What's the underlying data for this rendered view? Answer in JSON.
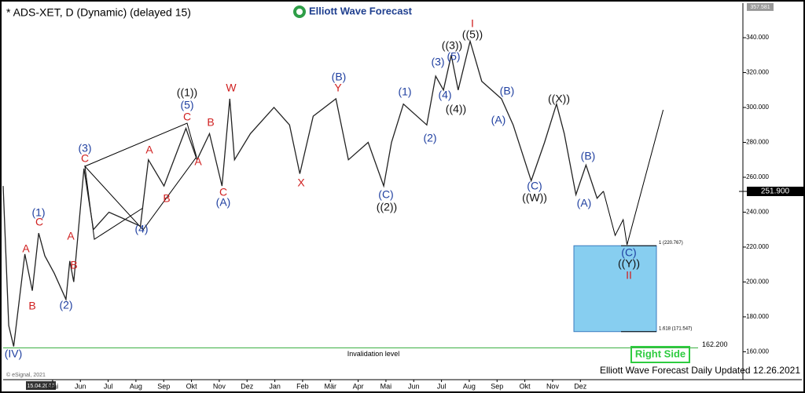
{
  "chart_data": {
    "type": "line",
    "title": "* ADS-XET, D (Dynamic) (delayed 15)",
    "logo": "Elliott Wave Forecast",
    "footer": "Elliott Wave Forecast Daily Updated 12.26.2021",
    "badge": "Right Side",
    "copyright": "© eSignal, 2021",
    "start_date": "15.04.2020",
    "xlim": [
      -1.78,
      24.85
    ],
    "ylim": [
      144,
      358
    ],
    "xticks": [
      {
        "value": 0,
        "label": "Mai"
      },
      {
        "value": 1,
        "label": "Jun"
      },
      {
        "value": 2,
        "label": "Jul"
      },
      {
        "value": 3,
        "label": "Aug"
      },
      {
        "value": 4,
        "label": "Sep"
      },
      {
        "value": 5,
        "label": "Okt"
      },
      {
        "value": 6,
        "label": "Nov"
      },
      {
        "value": 7,
        "label": "Dez"
      },
      {
        "value": 8,
        "label": "Jan"
      },
      {
        "value": 9,
        "label": "Feb"
      },
      {
        "value": 10,
        "label": "Mär"
      },
      {
        "value": 11,
        "label": "Apr"
      },
      {
        "value": 12,
        "label": "Mai"
      },
      {
        "value": 13,
        "label": "Jun"
      },
      {
        "value": 14,
        "label": "Jul"
      },
      {
        "value": 15,
        "label": "Aug"
      },
      {
        "value": 16,
        "label": "Sep"
      },
      {
        "value": 17,
        "label": "Okt"
      },
      {
        "value": 18,
        "label": "Nov"
      },
      {
        "value": 19,
        "label": "Dez"
      }
    ],
    "yticks": [
      {
        "value": 160,
        "label": "160.000"
      },
      {
        "value": 180,
        "label": "180.000"
      },
      {
        "value": 200,
        "label": "200.000"
      },
      {
        "value": 220,
        "label": "220.000"
      },
      {
        "value": 240,
        "label": "240.000"
      },
      {
        "value": 260,
        "label": "260.000"
      },
      {
        "value": 280,
        "label": "280.000"
      },
      {
        "value": 300,
        "label": "300.000"
      },
      {
        "value": 320,
        "label": "320.000"
      },
      {
        "value": 340,
        "label": "340.000"
      }
    ],
    "high": {
      "value": 357.581,
      "label": "357.581"
    },
    "last_price": {
      "value": 251.9,
      "label": "251.900"
    },
    "series": [
      {
        "color": "#222222",
        "x": [
          -1.78,
          -1.58,
          -1.4,
          -1.0,
          -0.73,
          -0.5,
          -0.28,
          0.06,
          0.48,
          0.62,
          0.76,
          1.13,
          1.47,
          2.03,
          2.74,
          3.16,
          3.45,
          4.01,
          4.8,
          5.2,
          5.65,
          6.1,
          6.38,
          6.55,
          7.12,
          7.97,
          8.53,
          8.9,
          9.38,
          10.2,
          10.65,
          11.36,
          11.92,
          12.2,
          12.63,
          13.47,
          13.79,
          14.07,
          14.35,
          14.6,
          15.03,
          15.45,
          16.16,
          16.58,
          17.23,
          17.71,
          18.14,
          18.42,
          18.84,
          19.2,
          19.6,
          19.83
        ],
        "values": [
          255,
          175,
          163,
          216,
          195,
          228,
          215,
          205,
          190,
          212,
          200,
          265,
          230,
          240,
          235,
          232,
          270,
          255,
          288,
          270,
          285,
          255,
          305,
          270,
          285,
          300,
          290,
          262,
          295,
          305,
          270,
          280,
          255,
          280,
          302,
          290,
          318,
          310,
          330,
          310,
          338,
          315,
          305,
          290,
          258,
          280,
          302,
          285,
          250,
          267,
          248,
          252
        ]
      },
      {
        "color": "#000000",
        "x": [
          19.83,
          20.25,
          20.54,
          20.68,
          21.98
        ],
        "values": [
          252,
          226.7,
          235.7,
          221.3,
          298.6
        ]
      }
    ],
    "fib_box": {
      "top": 220.767,
      "bottom": 171.547,
      "top_label": "1 (220.767)",
      "bottom_label": "1.618 (171.547)",
      "color": "#87cef0"
    },
    "invalidation": {
      "value": 162.2,
      "label": "162.200",
      "text": "Invalidation level",
      "color": "#3cb043"
    },
    "annotations": [
      {
        "text": "A",
        "color": "#d02020"
      },
      {
        "text": "B",
        "color": "#d02020"
      },
      {
        "text": "C",
        "color": "#d02020"
      },
      {
        "text": "A",
        "color": "#d02020"
      },
      {
        "text": "B",
        "color": "#d02020"
      },
      {
        "text": "C",
        "color": "#d02020"
      },
      {
        "text": "A",
        "color": "#d02020"
      },
      {
        "text": "B",
        "color": "#d02020"
      },
      {
        "text": "C",
        "color": "#d02020"
      },
      {
        "text": "A",
        "color": "#d02020"
      },
      {
        "text": "B",
        "color": "#d02020"
      },
      {
        "text": "C",
        "color": "#d02020"
      },
      {
        "text": "W",
        "color": "#d02020"
      },
      {
        "text": "X",
        "color": "#d02020"
      },
      {
        "text": "Y",
        "color": "#d02020"
      },
      {
        "text": "I",
        "color": "#d02020"
      },
      {
        "text": "II",
        "color": "#d02020"
      },
      {
        "text": "(1)",
        "color": "#1f3fa0"
      },
      {
        "text": "(2)",
        "color": "#1f3fa0"
      },
      {
        "text": "(3)",
        "color": "#1f3fa0"
      },
      {
        "text": "(4)",
        "color": "#1f3fa0"
      },
      {
        "text": "(5)",
        "color": "#1f3fa0"
      },
      {
        "text": "(A)",
        "color": "#1f3fa0"
      },
      {
        "text": "(B)",
        "color": "#1f3fa0"
      },
      {
        "text": "(C)",
        "color": "#1f3fa0"
      },
      {
        "text": "(1)",
        "color": "#1f3fa0"
      },
      {
        "text": "(2)",
        "color": "#1f3fa0"
      },
      {
        "text": "(3)",
        "color": "#1f3fa0"
      },
      {
        "text": "(4)",
        "color": "#1f3fa0"
      },
      {
        "text": "(5)",
        "color": "#1f3fa0"
      },
      {
        "text": "(B)",
        "color": "#1f3fa0"
      },
      {
        "text": "(A)",
        "color": "#1f3fa0"
      },
      {
        "text": "(C)",
        "color": "#1f3fa0"
      },
      {
        "text": "(B)",
        "color": "#1f3fa0"
      },
      {
        "text": "(A)",
        "color": "#1f3fa0"
      },
      {
        "text": "(C)",
        "color": "#1f3fa0"
      },
      {
        "text": "(IV)",
        "color": "#1f3fa0"
      },
      {
        "text": "((1))",
        "color": "#111111"
      },
      {
        "text": "((2))",
        "color": "#111111"
      },
      {
        "text": "((3))",
        "color": "#111111"
      },
      {
        "text": "((4))",
        "color": "#111111"
      },
      {
        "text": "((5))",
        "color": "#111111"
      },
      {
        "text": "((W))",
        "color": "#111111"
      },
      {
        "text": "((X))",
        "color": "#111111"
      },
      {
        "text": "((Y))",
        "color": "#111111"
      }
    ]
  }
}
